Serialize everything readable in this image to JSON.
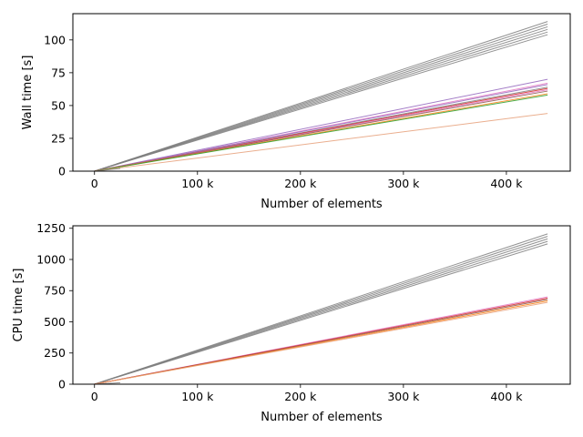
{
  "chart_data": [
    {
      "type": "line",
      "xlabel": "Number of elements",
      "ylabel": "Wall time [s]",
      "xlim": [
        -21000,
        462000
      ],
      "ylim": [
        0,
        120
      ],
      "xticks": [
        {
          "value": 0,
          "label": "0"
        },
        {
          "value": 100000,
          "label": "100 k"
        },
        {
          "value": 200000,
          "label": "200 k"
        },
        {
          "value": 300000,
          "label": "300 k"
        },
        {
          "value": 400000,
          "label": "400 k"
        }
      ],
      "yticks": [
        {
          "value": 0,
          "label": "0"
        },
        {
          "value": 25,
          "label": "25"
        },
        {
          "value": 50,
          "label": "50"
        },
        {
          "value": 75,
          "label": "75"
        },
        {
          "value": 100,
          "label": "100"
        }
      ],
      "grid": false,
      "series": [
        {
          "color": "#7f7f7f",
          "x": [
            0,
            440000
          ],
          "y": [
            0,
            114
          ]
        },
        {
          "color": "#7f7f7f",
          "x": [
            0,
            440000
          ],
          "y": [
            0,
            112
          ]
        },
        {
          "color": "#7f7f7f",
          "x": [
            0,
            440000
          ],
          "y": [
            0,
            110
          ]
        },
        {
          "color": "#7f7f7f",
          "x": [
            0,
            440000
          ],
          "y": [
            0,
            108
          ]
        },
        {
          "color": "#7f7f7f",
          "x": [
            0,
            440000
          ],
          "y": [
            0,
            106
          ]
        },
        {
          "color": "#7f7f7f",
          "x": [
            0,
            440000
          ],
          "y": [
            0,
            104
          ]
        },
        {
          "color": "#9467bd",
          "x": [
            0,
            440000
          ],
          "y": [
            0,
            70
          ]
        },
        {
          "color": "#e377c2",
          "x": [
            0,
            440000
          ],
          "y": [
            0,
            67
          ]
        },
        {
          "color": "#9467bd",
          "x": [
            0,
            440000
          ],
          "y": [
            0,
            66
          ]
        },
        {
          "color": "#7f7f7f",
          "x": [
            0,
            440000
          ],
          "y": [
            0,
            64
          ]
        },
        {
          "color": "#d62728",
          "x": [
            0,
            440000
          ],
          "y": [
            0,
            63
          ]
        },
        {
          "color": "#e377c2",
          "x": [
            0,
            440000
          ],
          "y": [
            0,
            62
          ]
        },
        {
          "color": "#8c564b",
          "x": [
            0,
            440000
          ],
          "y": [
            0,
            61
          ]
        },
        {
          "color": "#ff7f0e",
          "x": [
            0,
            440000
          ],
          "y": [
            0,
            59
          ]
        },
        {
          "color": "#2ca02c",
          "x": [
            0,
            440000
          ],
          "y": [
            0,
            58
          ]
        },
        {
          "color": "#e6a07a",
          "x": [
            0,
            440000
          ],
          "y": [
            0,
            44
          ]
        },
        {
          "color": "#7f7f7f",
          "x": [
            0,
            25000
          ],
          "y": [
            0,
            2
          ]
        }
      ]
    },
    {
      "type": "line",
      "xlabel": "Number of elements",
      "ylabel": "CPU time [s]",
      "xlim": [
        -21000,
        462000
      ],
      "ylim": [
        0,
        1270
      ],
      "xticks": [
        {
          "value": 0,
          "label": "0"
        },
        {
          "value": 100000,
          "label": "100 k"
        },
        {
          "value": 200000,
          "label": "200 k"
        },
        {
          "value": 300000,
          "label": "300 k"
        },
        {
          "value": 400000,
          "label": "400 k"
        }
      ],
      "yticks": [
        {
          "value": 0,
          "label": "0"
        },
        {
          "value": 250,
          "label": "250"
        },
        {
          "value": 500,
          "label": "500"
        },
        {
          "value": 750,
          "label": "750"
        },
        {
          "value": 1000,
          "label": "1000"
        },
        {
          "value": 1250,
          "label": "1250"
        }
      ],
      "grid": false,
      "series": [
        {
          "color": "#7f7f7f",
          "x": [
            0,
            440000
          ],
          "y": [
            0,
            1205
          ]
        },
        {
          "color": "#7f7f7f",
          "x": [
            0,
            440000
          ],
          "y": [
            0,
            1185
          ]
        },
        {
          "color": "#7f7f7f",
          "x": [
            0,
            440000
          ],
          "y": [
            0,
            1165
          ]
        },
        {
          "color": "#7f7f7f",
          "x": [
            0,
            440000
          ],
          "y": [
            0,
            1145
          ]
        },
        {
          "color": "#7f7f7f",
          "x": [
            0,
            440000
          ],
          "y": [
            0,
            1125
          ]
        },
        {
          "color": "#e377c2",
          "x": [
            0,
            440000
          ],
          "y": [
            0,
            700
          ]
        },
        {
          "color": "#d62728",
          "x": [
            0,
            440000
          ],
          "y": [
            0,
            690
          ]
        },
        {
          "color": "#8c564b",
          "x": [
            0,
            440000
          ],
          "y": [
            0,
            680
          ]
        },
        {
          "color": "#ff7f0e",
          "x": [
            0,
            440000
          ],
          "y": [
            0,
            668
          ]
        },
        {
          "color": "#e6a07a",
          "x": [
            0,
            440000
          ],
          "y": [
            0,
            656
          ]
        },
        {
          "color": "#7f7f7f",
          "x": [
            0,
            25000
          ],
          "y": [
            0,
            12
          ]
        }
      ]
    }
  ]
}
